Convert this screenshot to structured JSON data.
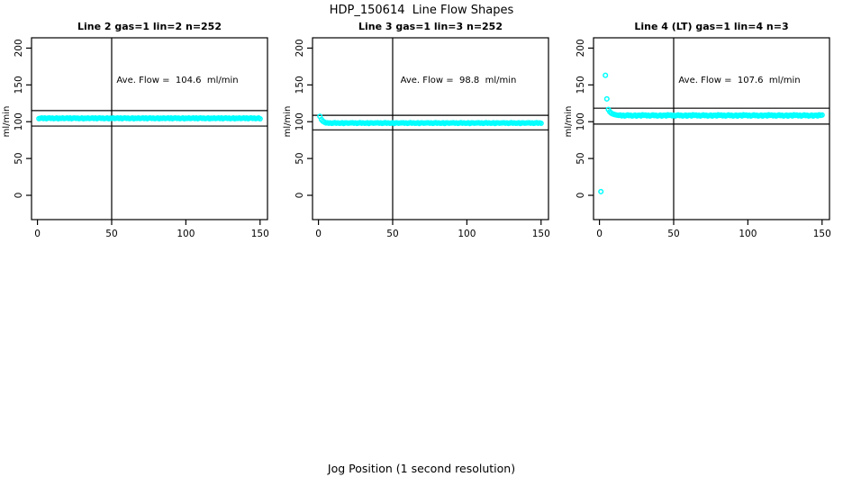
{
  "figure": {
    "main_title": "HDP_150614  Line Flow Shapes",
    "xlabel_bottom": "Jog Position (1 second resolution)",
    "background_color": "#FFFFFF",
    "marker_color": "#00FFFF",
    "axis_color": "#000000"
  },
  "chart_data": [
    {
      "type": "scatter",
      "title": "Line 2 gas=1 lin=2 n=252",
      "annotation": "Ave. Flow =  104.6  ml/min",
      "ave_flow_ml_min": 104.6,
      "n": 252,
      "ylabel": "ml/min",
      "x_ticks": [
        0,
        50,
        100,
        150
      ],
      "y_ticks": [
        0,
        50,
        100,
        150,
        200
      ],
      "xlim": [
        -4,
        155
      ],
      "ylim": [
        -33,
        214
      ],
      "vline_x": 50,
      "ref_lines_y": [
        115.1,
        94.1
      ],
      "marker": "open-circle",
      "points_explicit": [
        [
          1,
          104.2
        ]
      ],
      "flat_segment": {
        "x_from": 2,
        "x_to": 150,
        "base": 104.6,
        "jitter_cycle": [
          0.1,
          0.5,
          -0.3,
          0.4,
          -0.5,
          0.2,
          0.6,
          -0.2,
          0.3,
          -0.4,
          0.0,
          0.4,
          -0.6,
          0.2,
          -0.1,
          0.5,
          -0.3
        ]
      }
    },
    {
      "type": "scatter",
      "title": "Line 3 gas=1 lin=3 n=252",
      "annotation": "Ave. Flow =  98.8  ml/min",
      "ave_flow_ml_min": 98.8,
      "n": 252,
      "ylabel": "ml/min",
      "x_ticks": [
        0,
        50,
        100,
        150
      ],
      "y_ticks": [
        0,
        50,
        100,
        150,
        200
      ],
      "xlim": [
        -4,
        155
      ],
      "ylim": [
        -33,
        214
      ],
      "vline_x": 50,
      "ref_lines_y": [
        108.7,
        88.9
      ],
      "marker": "open-circle",
      "points_explicit": [
        [
          1,
          107.2
        ],
        [
          2,
          103.0
        ],
        [
          3,
          100.6
        ],
        [
          4,
          99.4
        ]
      ],
      "flat_segment": {
        "x_from": 5,
        "x_to": 150,
        "base": 98.1,
        "jitter_cycle": [
          0.2,
          0.5,
          -0.2,
          0.4,
          -0.4,
          0.1,
          0.6,
          -0.1,
          0.3,
          -0.3,
          0.0,
          0.5,
          -0.5,
          0.2,
          0.4,
          -0.2,
          0.1
        ]
      }
    },
    {
      "type": "scatter",
      "title": "Line 4 (LT) gas=1 lin=4 n=3",
      "annotation": "Ave. Flow =  107.6  ml/min",
      "ave_flow_ml_min": 107.6,
      "n": 3,
      "ylabel": "ml/min",
      "x_ticks": [
        0,
        50,
        100,
        150
      ],
      "y_ticks": [
        0,
        50,
        100,
        150,
        200
      ],
      "xlim": [
        -4,
        155
      ],
      "ylim": [
        -33,
        214
      ],
      "vline_x": 50,
      "ref_lines_y": [
        118.4,
        96.8
      ],
      "marker": "open-circle",
      "points_explicit": [
        [
          1,
          5
        ],
        [
          4,
          163
        ],
        [
          5,
          131
        ],
        [
          6,
          116.5
        ],
        [
          7,
          113.5
        ],
        [
          8,
          111.5
        ],
        [
          9,
          110.5
        ],
        [
          10,
          109.8
        ],
        [
          11,
          109.3
        ],
        [
          12,
          108.9
        ]
      ],
      "flat_segment": {
        "x_from": 13,
        "x_to": 150,
        "base": 108.3,
        "jitter_cycle": [
          0.3,
          0.8,
          -0.3,
          0.5,
          -0.6,
          0.2,
          0.9,
          -0.1,
          0.4,
          -0.5,
          0.0,
          0.7,
          -0.7,
          0.3,
          0.5,
          -0.4,
          1.0
        ]
      }
    }
  ]
}
